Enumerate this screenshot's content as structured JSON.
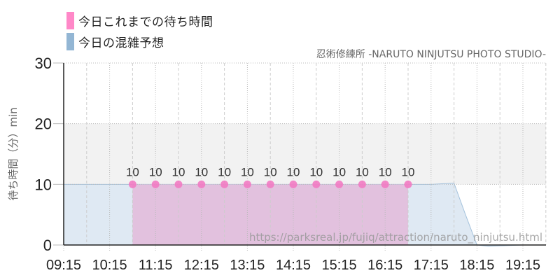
{
  "legend": {
    "items": [
      {
        "label": "今日これまでの待ち時間",
        "color": "#ff88c8"
      },
      {
        "label": "今日の混雑予想",
        "color": "#93b6d4"
      }
    ]
  },
  "subtitle": "忍術修練所 -NARUTO NINJUTSU PHOTO STUDIO-",
  "watermark": "https://parksreal.jp/fujiq/attraction/naruto_ninjutsu.html",
  "colors": {
    "actual_fill": "#e2c1de",
    "actual_marker": "#f27bc3",
    "forecast_fill": "#dfe9f3",
    "forecast_line": "#a4c2dc",
    "band": "#f2f2f2",
    "axis": "#222222"
  },
  "chart_data": {
    "type": "area",
    "title": "忍術修練所 -NARUTO NINJUTSU PHOTO STUDIO-",
    "xlabel": "",
    "ylabel": "待ち時間（分）min",
    "ylim": [
      0,
      30
    ],
    "yticks": [
      0,
      10,
      20,
      30
    ],
    "xticks": [
      "09:15",
      "10:15",
      "11:15",
      "12:15",
      "13:15",
      "14:15",
      "15:15",
      "16:15",
      "17:15",
      "18:15",
      "19:15"
    ],
    "grid": true,
    "legend_position": "top-left",
    "series": [
      {
        "name": "今日これまでの待ち時間",
        "type": "area+markers",
        "x": [
          "10:45",
          "11:15",
          "11:45",
          "12:15",
          "12:45",
          "13:15",
          "13:45",
          "14:15",
          "14:45",
          "15:15",
          "15:45",
          "16:15",
          "16:45"
        ],
        "values": [
          10,
          10,
          10,
          10,
          10,
          10,
          10,
          10,
          10,
          10,
          10,
          10,
          10
        ]
      },
      {
        "name": "今日の混雑予想",
        "type": "area",
        "x": [
          "09:15",
          "10:15",
          "11:15",
          "12:15",
          "13:15",
          "14:15",
          "15:15",
          "16:15",
          "17:15",
          "17:45",
          "18:00",
          "18:15",
          "18:30",
          "19:15",
          "19:45"
        ],
        "values": [
          10,
          10,
          10,
          10,
          10,
          10,
          10,
          10,
          10,
          10.2,
          5,
          0,
          -0.2,
          0,
          0
        ]
      }
    ]
  }
}
